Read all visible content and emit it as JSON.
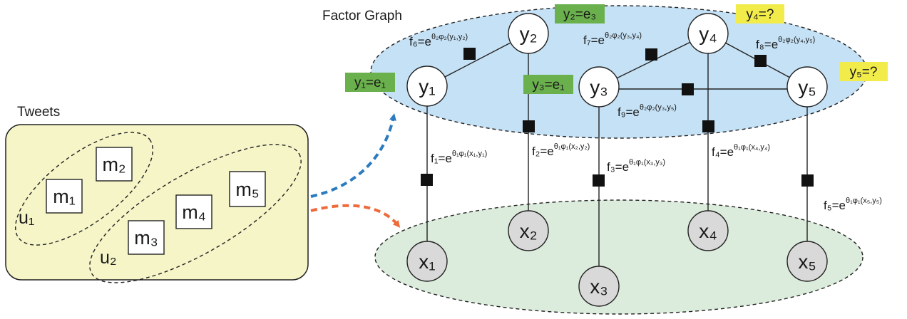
{
  "tweets": {
    "title": "Tweets",
    "users": [
      "u₁",
      "u₂"
    ],
    "messages": [
      "m₁",
      "m₂",
      "m₃",
      "m₄",
      "m₅"
    ]
  },
  "factor_graph": {
    "title": "Factor Graph",
    "latent_nodes": [
      "y₁",
      "y₂",
      "y₃",
      "y₄",
      "y₅"
    ],
    "observed_nodes": [
      "x₁",
      "x₂",
      "x₃",
      "x₄",
      "x₅"
    ],
    "tags": [
      {
        "text": "y₁=e₁",
        "color": "#6ab04c"
      },
      {
        "text": "y₂=e₃",
        "color": "#6ab04c"
      },
      {
        "text": "y₃=e₁",
        "color": "#6ab04c"
      },
      {
        "text": "y₄=?",
        "color": "#f2ec4a"
      },
      {
        "text": "y₅=?",
        "color": "#f2ec4a"
      }
    ],
    "factors": [
      {
        "name": "f₁=e",
        "exp": "θ₁φ₁(x₁,y₁)"
      },
      {
        "name": "f₂=e",
        "exp": "θ₁φ₁(x₂,y₂)"
      },
      {
        "name": "f₃=e",
        "exp": "θ₁φ₁(x₃,y₃)"
      },
      {
        "name": "f₄=e",
        "exp": "θ₁φ₁(x₄,y₄)"
      },
      {
        "name": "f₅=e",
        "exp": "θ₁φ₁(x₅,y₅)"
      },
      {
        "name": "f₆=e",
        "exp": "θ₂φ₂(y₁,y₂)"
      },
      {
        "name": "f₇=e",
        "exp": "θ₂φ₂(y₃,y₄)"
      },
      {
        "name": "f₈=e",
        "exp": "θ₂φ₂(y₄,y₅)"
      },
      {
        "name": "f₉=e",
        "exp": "θ₂φ₂(y₃,y₅)"
      }
    ]
  },
  "colors": {
    "tweets_box": "#f5f5c8",
    "latent_region": "#c5e1f5",
    "observed_region": "#dcecdc",
    "observed_node": "#d9d9d9",
    "arrow_blue": "#2a7bbf",
    "arrow_orange": "#ee6a3a"
  }
}
